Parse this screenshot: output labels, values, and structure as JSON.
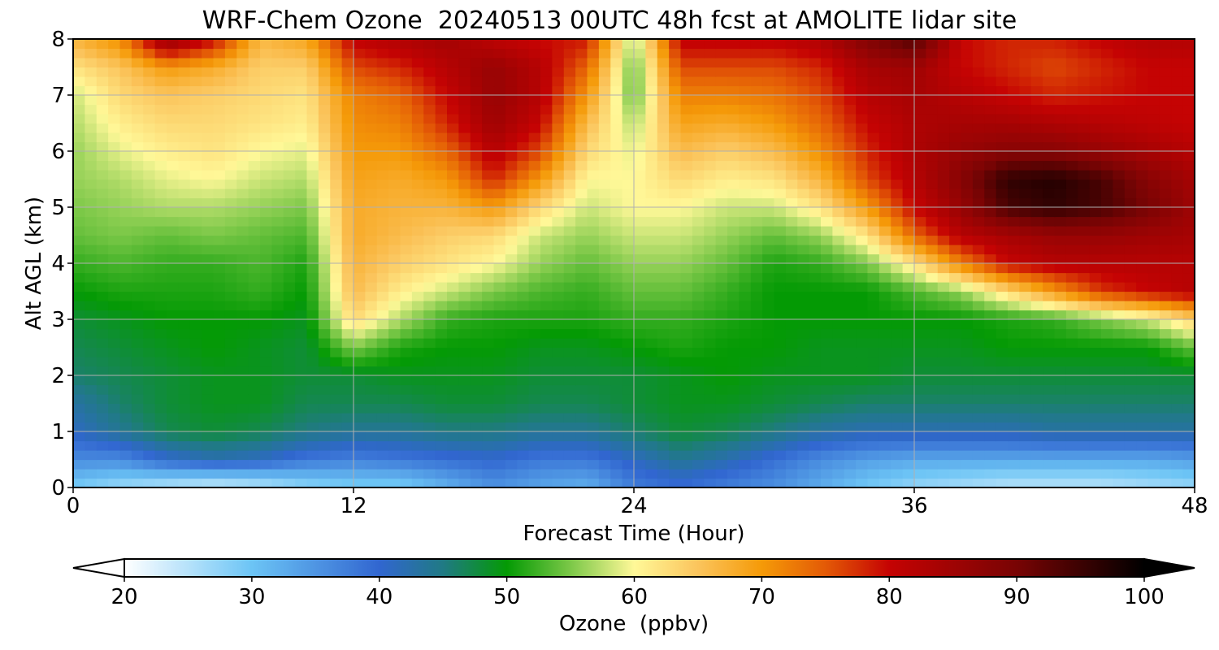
{
  "chart_data": {
    "type": "heatmap",
    "title": "WRF-Chem Ozone  20240513 00UTC 48h fcst at AMOLITE lidar site",
    "xlabel": "Forecast Time (Hour)",
    "ylabel": "Alt AGL (km)",
    "xlim": [
      0,
      48
    ],
    "ylim": [
      0,
      8
    ],
    "xticks": [
      0,
      12,
      24,
      36,
      48
    ],
    "yticks": [
      0,
      1,
      2,
      3,
      4,
      5,
      6,
      7,
      8
    ],
    "grid": true,
    "x": [
      0,
      2,
      4,
      6,
      8,
      10,
      12,
      14,
      16,
      18,
      20,
      22,
      24,
      26,
      28,
      30,
      32,
      34,
      36,
      38,
      40,
      42,
      44,
      46,
      48
    ],
    "y": [
      0.1,
      0.5,
      1.0,
      1.5,
      2.0,
      2.5,
      3.0,
      3.5,
      4.0,
      4.5,
      5.0,
      5.5,
      6.0,
      6.5,
      7.0,
      7.5,
      7.9
    ],
    "z": [
      [
        30,
        28,
        27,
        26,
        27,
        29,
        30,
        30,
        33,
        36,
        34,
        33,
        38,
        40,
        38,
        36,
        33,
        30,
        28,
        27,
        26,
        26,
        26,
        27,
        28
      ],
      [
        36,
        36,
        40,
        42,
        41,
        38,
        37,
        38,
        39,
        40,
        38,
        38,
        41,
        44,
        42,
        39,
        36,
        34,
        33,
        33,
        33,
        33,
        33,
        33,
        34
      ],
      [
        41,
        44,
        47,
        48,
        47,
        45,
        44,
        44,
        45,
        45,
        44,
        44,
        46,
        48,
        47,
        45,
        43,
        42,
        42,
        42,
        42,
        43,
        43,
        43,
        43
      ],
      [
        43,
        46,
        48,
        49,
        49,
        47,
        47,
        47,
        48,
        48,
        47,
        47,
        48,
        49,
        49,
        48,
        47,
        46,
        46,
        46,
        46,
        46,
        46,
        46,
        46
      ],
      [
        46,
        47,
        48,
        49,
        49,
        48,
        48,
        49,
        49,
        49,
        48,
        48,
        48,
        49,
        50,
        49,
        49,
        49,
        48,
        48,
        48,
        48,
        48,
        48,
        48
      ],
      [
        47,
        48,
        49,
        50,
        49,
        48,
        55,
        51,
        50,
        50,
        49,
        49,
        50,
        51,
        50,
        50,
        49,
        49,
        49,
        49,
        50,
        50,
        50,
        50,
        54
      ],
      [
        48,
        49,
        50,
        50,
        50,
        49,
        63,
        57,
        52,
        51,
        51,
        51,
        52,
        52,
        51,
        50,
        50,
        50,
        50,
        50,
        51,
        52,
        55,
        58,
        64
      ],
      [
        50,
        51,
        51,
        51,
        52,
        50,
        66,
        61,
        58,
        55,
        53,
        52,
        54,
        54,
        52,
        50,
        50,
        50,
        53,
        56,
        63,
        70,
        77,
        80,
        82
      ],
      [
        52,
        53,
        52,
        52,
        53,
        51,
        67,
        64,
        62,
        60,
        56,
        54,
        56,
        56,
        54,
        51,
        52,
        55,
        62,
        72,
        80,
        82,
        82,
        82,
        82
      ],
      [
        54,
        55,
        54,
        55,
        54,
        53,
        68,
        66,
        64,
        63,
        58,
        56,
        58,
        58,
        56,
        54,
        56,
        62,
        74,
        82,
        84,
        86,
        86,
        85,
        84
      ],
      [
        55,
        56,
        57,
        57,
        56,
        55,
        68,
        67,
        67,
        70,
        63,
        58,
        60,
        60,
        58,
        58,
        62,
        70,
        80,
        86,
        94,
        96,
        94,
        90,
        85
      ],
      [
        56,
        57,
        59,
        60,
        58,
        57,
        69,
        68,
        70,
        78,
        70,
        60,
        60,
        63,
        61,
        62,
        67,
        76,
        82,
        88,
        96,
        97,
        94,
        88,
        84
      ],
      [
        56,
        59,
        61,
        62,
        60,
        59,
        70,
        70,
        74,
        82,
        76,
        63,
        59,
        66,
        64,
        66,
        71,
        78,
        83,
        86,
        88,
        88,
        86,
        84,
        82
      ],
      [
        57,
        61,
        63,
        63,
        62,
        61,
        71,
        72,
        78,
        85,
        80,
        66,
        57,
        69,
        68,
        70,
        74,
        80,
        83,
        84,
        84,
        83,
        82,
        81,
        80
      ],
      [
        58,
        63,
        65,
        64,
        63,
        62,
        72,
        74,
        80,
        86,
        82,
        70,
        54,
        72,
        72,
        73,
        76,
        82,
        84,
        82,
        80,
        78,
        79,
        80,
        80
      ],
      [
        62,
        65,
        70,
        68,
        64,
        64,
        76,
        78,
        82,
        86,
        82,
        74,
        54,
        76,
        76,
        76,
        78,
        84,
        85,
        80,
        78,
        76,
        78,
        80,
        80
      ],
      [
        66,
        70,
        84,
        78,
        66,
        68,
        80,
        82,
        84,
        82,
        80,
        78,
        56,
        80,
        80,
        80,
        82,
        88,
        92,
        80,
        78,
        78,
        80,
        82,
        82
      ]
    ],
    "colorbar": {
      "label": "Ozone  (ppbv)",
      "ticks": [
        20,
        30,
        40,
        50,
        60,
        70,
        80,
        90,
        100
      ],
      "range": [
        20,
        100
      ],
      "extend": "both",
      "colors": [
        {
          "v": 20,
          "c": "#ffffff"
        },
        {
          "v": 30,
          "c": "#6cc4f5"
        },
        {
          "v": 40,
          "c": "#3166d0"
        },
        {
          "v": 45,
          "c": "#207a84"
        },
        {
          "v": 50,
          "c": "#049a04"
        },
        {
          "v": 55,
          "c": "#7cc848"
        },
        {
          "v": 60,
          "c": "#fff898"
        },
        {
          "v": 65,
          "c": "#fbc45c"
        },
        {
          "v": 70,
          "c": "#f59a08"
        },
        {
          "v": 75,
          "c": "#e35a06"
        },
        {
          "v": 80,
          "c": "#c50303"
        },
        {
          "v": 90,
          "c": "#780404"
        },
        {
          "v": 100,
          "c": "#000000"
        }
      ]
    }
  }
}
